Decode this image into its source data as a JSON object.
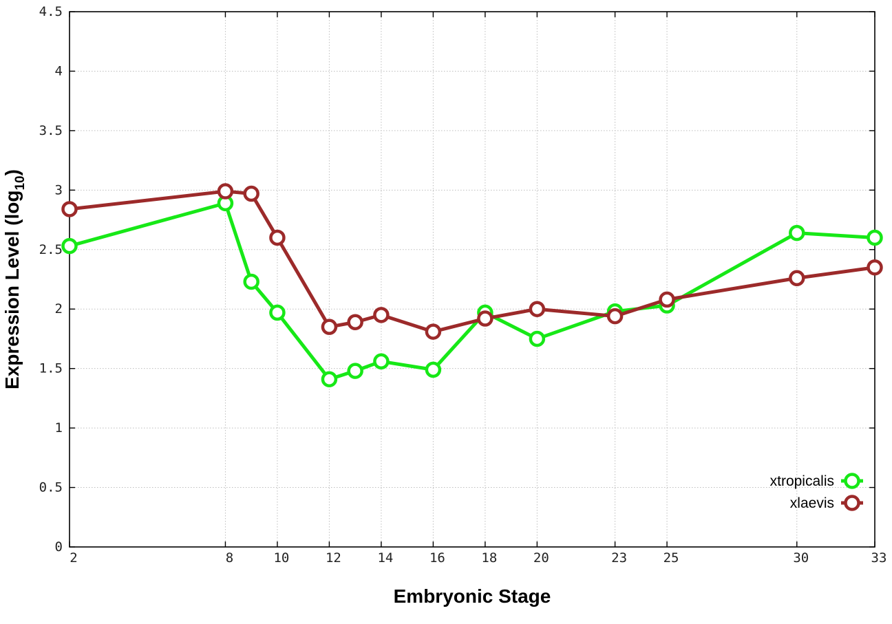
{
  "chart_data": {
    "type": "line",
    "title": "",
    "xlabel": "Embryonic Stage",
    "ylabel_main": "Expression Level (log",
    "ylabel_sub": "10",
    "ylabel_close": ")",
    "x": [
      2,
      8,
      9,
      10,
      12,
      13,
      14,
      16,
      18,
      20,
      23,
      25,
      30,
      33
    ],
    "xticks": [
      2,
      8,
      10,
      12,
      14,
      16,
      18,
      20,
      23,
      25,
      30,
      33
    ],
    "xlim": [
      2,
      33
    ],
    "ylim": [
      0,
      4.5
    ],
    "yticks": [
      "0",
      "0.5",
      "1",
      "1.5",
      "2",
      "2.5",
      "3",
      "3.5",
      "4",
      "4.5"
    ],
    "grid": true,
    "legend_position": "bottom-right",
    "series": [
      {
        "name": "xtropicalis",
        "color": "#17e817",
        "values": [
          2.53,
          2.89,
          2.23,
          1.97,
          1.41,
          1.48,
          1.56,
          1.49,
          1.97,
          1.75,
          1.98,
          2.03,
          2.64,
          2.6
        ]
      },
      {
        "name": "xlaevis",
        "color": "#9c2a2a",
        "values": [
          2.84,
          2.99,
          2.97,
          2.6,
          1.85,
          1.89,
          1.95,
          1.81,
          1.92,
          2.0,
          1.94,
          2.08,
          2.26,
          2.35
        ]
      }
    ]
  }
}
